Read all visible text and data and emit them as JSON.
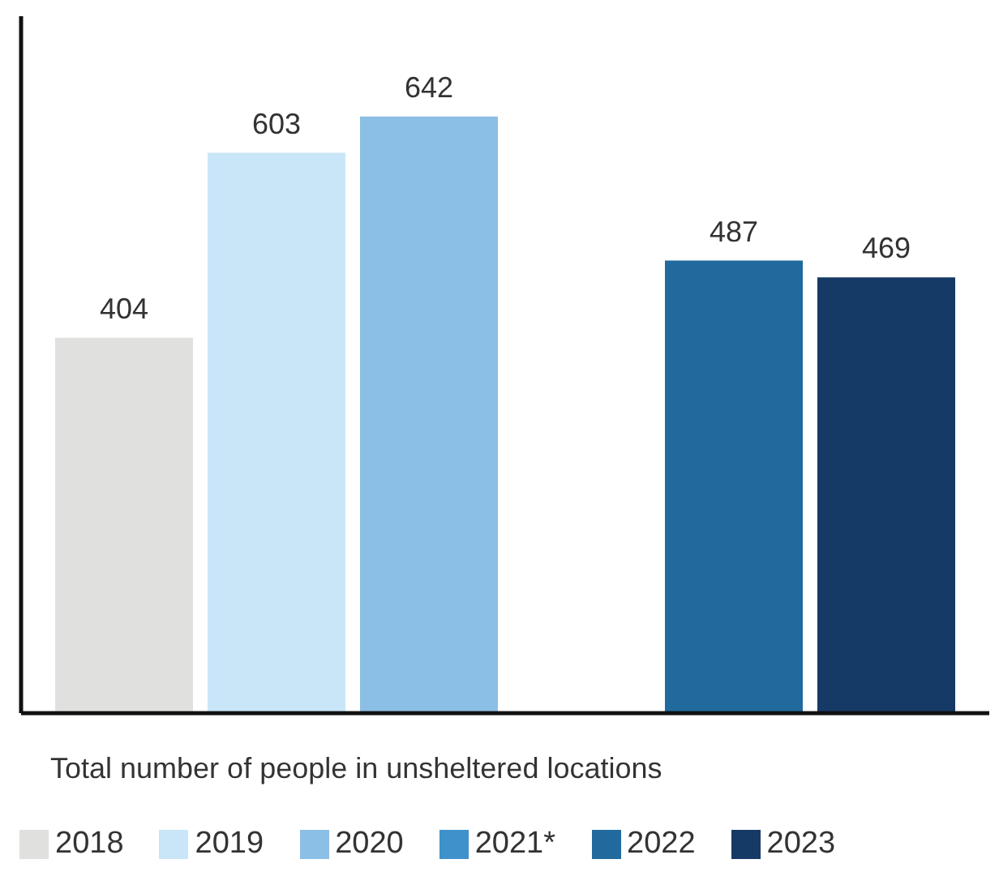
{
  "chart_data": {
    "type": "bar",
    "xlabel": "Total number of people in unsheltered locations",
    "categories": [
      null
    ],
    "series": [
      {
        "name": "2018",
        "color": "#e0e0df",
        "values": [
          404
        ]
      },
      {
        "name": "2019",
        "color": "#c9e6f8",
        "values": [
          603
        ]
      },
      {
        "name": "2020",
        "color": "#8bbfe6",
        "values": [
          642
        ]
      },
      {
        "name": "2021*",
        "color": "#3f91cc",
        "values": [
          null
        ]
      },
      {
        "name": "2022",
        "color": "#216a9e",
        "values": [
          487
        ]
      },
      {
        "name": "2023",
        "color": "#163a66",
        "values": [
          469
        ]
      }
    ],
    "ylim": [
      0,
      750
    ],
    "data_labels": true,
    "legend": "bottom"
  }
}
